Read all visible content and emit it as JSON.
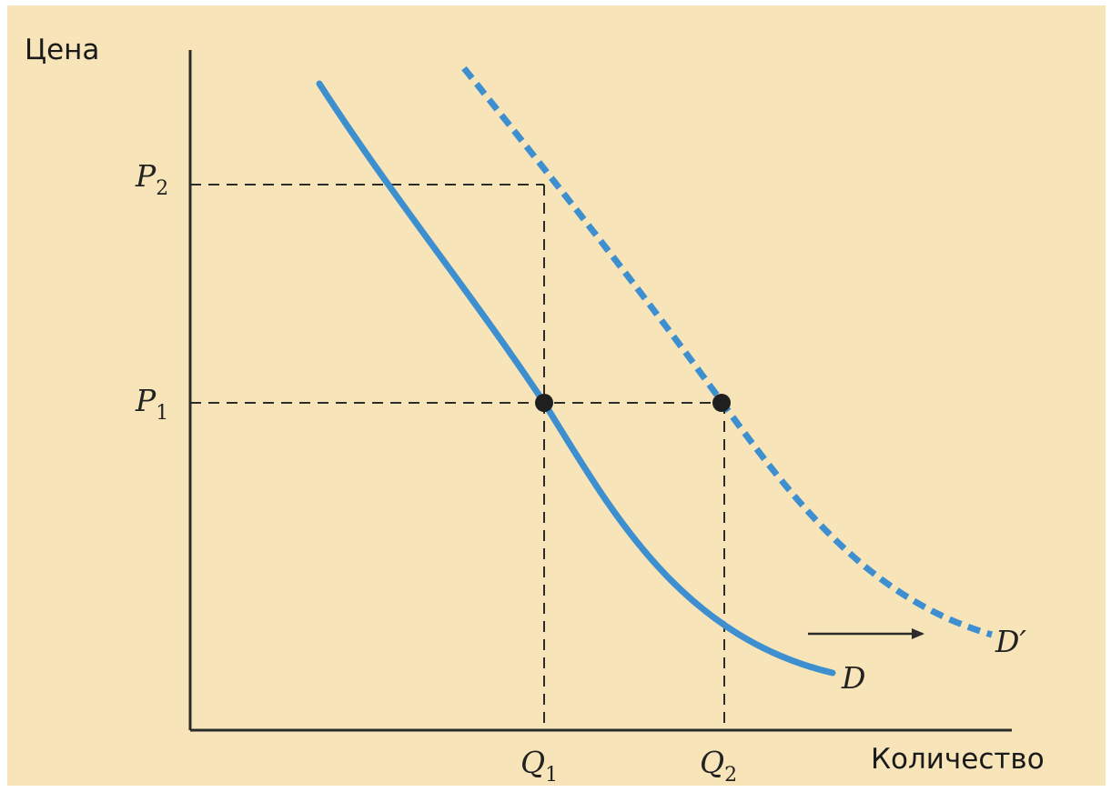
{
  "labels": {
    "price_axis": "Цена",
    "quantity_axis": "Количество",
    "p1": {
      "letter": "P",
      "sub": "1"
    },
    "p2": {
      "letter": "P",
      "sub": "2"
    },
    "q1": {
      "letter": "Q",
      "sub": "1"
    },
    "q2": {
      "letter": "Q",
      "sub": "2"
    },
    "curve_d": "D",
    "curve_d_shifted": "D′"
  },
  "colors": {
    "paper": "#f7e5b9",
    "curve": "#3e8fd0",
    "axis": "#2b2b2b",
    "guide": "#2b2b2b",
    "point": "#1f1f1f"
  },
  "icons": {
    "shift_arrow": "right-arrow"
  }
}
